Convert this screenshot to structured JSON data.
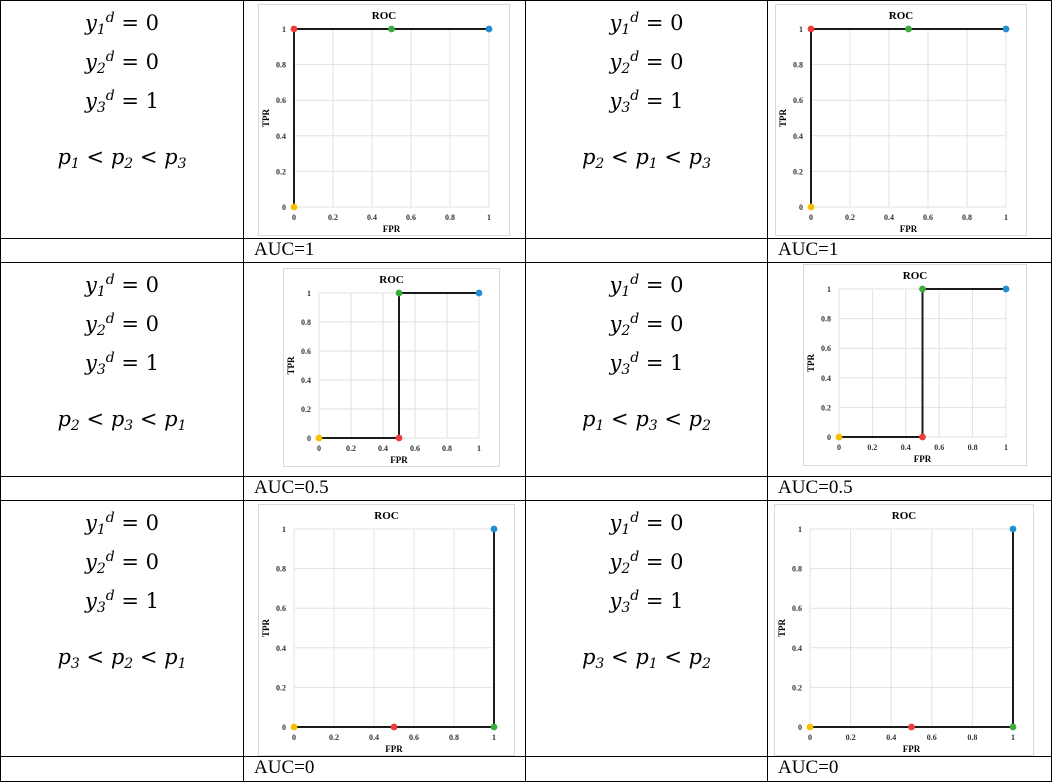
{
  "rows": [
    {
      "left": {
        "cond": {
          "y1": "0",
          "y2": "0",
          "y3": "1",
          "order": [
            {
              "s": "p",
              "i": "1"
            },
            {
              "s": "p",
              "i": "2"
            },
            {
              "s": "p",
              "i": "3"
            }
          ]
        },
        "auc": "AUC=1",
        "chart": {
          "title": "ROC",
          "xlabel": "FPR",
          "ylabel": "TPR"
        }
      },
      "right": {
        "cond": {
          "y1": "0",
          "y2": "0",
          "y3": "1",
          "order": [
            {
              "s": "p",
              "i": "2"
            },
            {
              "s": "p",
              "i": "1"
            },
            {
              "s": "p",
              "i": "3"
            }
          ]
        },
        "auc": "AUC=1",
        "chart": {
          "title": "ROC",
          "xlabel": "FPR",
          "ylabel": "TPR"
        }
      }
    },
    {
      "left": {
        "cond": {
          "y1": "0",
          "y2": "0",
          "y3": "1",
          "order": [
            {
              "s": "p",
              "i": "2"
            },
            {
              "s": "p",
              "i": "3"
            },
            {
              "s": "p",
              "i": "1"
            }
          ]
        },
        "auc": "AUC=0.5",
        "chart": {
          "title": "ROC",
          "xlabel": "FPR",
          "ylabel": "TPR"
        }
      },
      "right": {
        "cond": {
          "y1": "0",
          "y2": "0",
          "y3": "1",
          "order": [
            {
              "s": "p",
              "i": "1"
            },
            {
              "s": "p",
              "i": "3"
            },
            {
              "s": "p",
              "i": "2"
            }
          ]
        },
        "auc": "AUC=0.5",
        "chart": {
          "title": "ROC",
          "xlabel": "FPR",
          "ylabel": "TPR"
        }
      }
    },
    {
      "left": {
        "cond": {
          "y1": "0",
          "y2": "0",
          "y3": "1",
          "order": [
            {
              "s": "p",
              "i": "3"
            },
            {
              "s": "p",
              "i": "2"
            },
            {
              "s": "p",
              "i": "1"
            }
          ]
        },
        "auc": "AUC=0",
        "chart": {
          "title": "ROC",
          "xlabel": "FPR",
          "ylabel": "TPR"
        }
      },
      "right": {
        "cond": {
          "y1": "0",
          "y2": "0",
          "y3": "1",
          "order": [
            {
              "s": "p",
              "i": "3"
            },
            {
              "s": "p",
              "i": "1"
            },
            {
              "s": "p",
              "i": "2"
            }
          ]
        },
        "auc": "AUC=0",
        "chart": {
          "title": "ROC",
          "xlabel": "FPR",
          "ylabel": "TPR"
        }
      }
    }
  ],
  "chart_data": [
    {
      "type": "line",
      "title": "ROC",
      "xlabel": "FPR",
      "ylabel": "TPR",
      "xlim": [
        0,
        1
      ],
      "ylim": [
        0,
        1
      ],
      "xticks": [
        "0",
        "0.2",
        "0.4",
        "0.6",
        "0.8",
        "1"
      ],
      "yticks": [
        "0",
        "0.2",
        "0.4",
        "0.6",
        "0.8",
        "1"
      ],
      "grid": true,
      "points": [
        {
          "x": 0,
          "y": 0,
          "color": "#f5c000"
        },
        {
          "x": 0,
          "y": 1,
          "color": "#ee3b3b"
        },
        {
          "x": 0.5,
          "y": 1,
          "color": "#3cab3c"
        },
        {
          "x": 1,
          "y": 1,
          "color": "#1f8fd0"
        }
      ]
    },
    {
      "type": "line",
      "title": "ROC",
      "xlabel": "FPR",
      "ylabel": "TPR",
      "xlim": [
        0,
        1
      ],
      "ylim": [
        0,
        1
      ],
      "xticks": [
        "0",
        "0.2",
        "0.4",
        "0.6",
        "0.8",
        "1"
      ],
      "yticks": [
        "0",
        "0.2",
        "0.4",
        "0.6",
        "0.8",
        "1"
      ],
      "grid": true,
      "points": [
        {
          "x": 0,
          "y": 0,
          "color": "#f5c000"
        },
        {
          "x": 0,
          "y": 1,
          "color": "#ee3b3b"
        },
        {
          "x": 0.5,
          "y": 1,
          "color": "#3cab3c"
        },
        {
          "x": 1,
          "y": 1,
          "color": "#1f8fd0"
        }
      ]
    },
    {
      "type": "line",
      "title": "ROC",
      "xlabel": "FPR",
      "ylabel": "TPR",
      "xlim": [
        0,
        1
      ],
      "ylim": [
        0,
        1
      ],
      "xticks": [
        "0",
        "0.2",
        "0.4",
        "0.6",
        "0.8",
        "1"
      ],
      "yticks": [
        "0",
        "0.2",
        "0.4",
        "0.6",
        "0.8",
        "1"
      ],
      "grid": true,
      "points": [
        {
          "x": 0,
          "y": 0,
          "color": "#f5c000"
        },
        {
          "x": 0.5,
          "y": 0,
          "color": "#ee3b3b"
        },
        {
          "x": 0.5,
          "y": 1,
          "color": "#3cab3c"
        },
        {
          "x": 1,
          "y": 1,
          "color": "#1f8fd0"
        }
      ]
    },
    {
      "type": "line",
      "title": "ROC",
      "xlabel": "FPR",
      "ylabel": "TPR",
      "xlim": [
        0,
        1
      ],
      "ylim": [
        0,
        1
      ],
      "xticks": [
        "0",
        "0.2",
        "0.4",
        "0.6",
        "0.8",
        "1"
      ],
      "yticks": [
        "0",
        "0.2",
        "0.4",
        "0.6",
        "0.8",
        "1"
      ],
      "grid": true,
      "points": [
        {
          "x": 0,
          "y": 0,
          "color": "#f5c000"
        },
        {
          "x": 0.5,
          "y": 0,
          "color": "#ee3b3b"
        },
        {
          "x": 0.5,
          "y": 1,
          "color": "#3cab3c"
        },
        {
          "x": 1,
          "y": 1,
          "color": "#1f8fd0"
        }
      ]
    },
    {
      "type": "line",
      "title": "ROC",
      "xlabel": "FPR",
      "ylabel": "TPR",
      "xlim": [
        0,
        1
      ],
      "ylim": [
        0,
        1
      ],
      "xticks": [
        "0",
        "0.2",
        "0.4",
        "0.6",
        "0.8",
        "1"
      ],
      "yticks": [
        "0",
        "0.2",
        "0.4",
        "0.6",
        "0.8",
        "1"
      ],
      "grid": true,
      "points": [
        {
          "x": 0,
          "y": 0,
          "color": "#f5c000"
        },
        {
          "x": 0.5,
          "y": 0,
          "color": "#ee3b3b"
        },
        {
          "x": 1,
          "y": 0,
          "color": "#3cab3c"
        },
        {
          "x": 1,
          "y": 1,
          "color": "#1f8fd0"
        }
      ]
    },
    {
      "type": "line",
      "title": "ROC",
      "xlabel": "FPR",
      "ylabel": "TPR",
      "xlim": [
        0,
        1
      ],
      "ylim": [
        0,
        1
      ],
      "xticks": [
        "0",
        "0.2",
        "0.4",
        "0.6",
        "0.8",
        "1"
      ],
      "yticks": [
        "0",
        "0.2",
        "0.4",
        "0.6",
        "0.8",
        "1"
      ],
      "grid": true,
      "points": [
        {
          "x": 0,
          "y": 0,
          "color": "#f5c000"
        },
        {
          "x": 0.5,
          "y": 0,
          "color": "#ee3b3b"
        },
        {
          "x": 1,
          "y": 0,
          "color": "#3cab3c"
        },
        {
          "x": 1,
          "y": 1,
          "color": "#1f8fd0"
        }
      ]
    }
  ]
}
